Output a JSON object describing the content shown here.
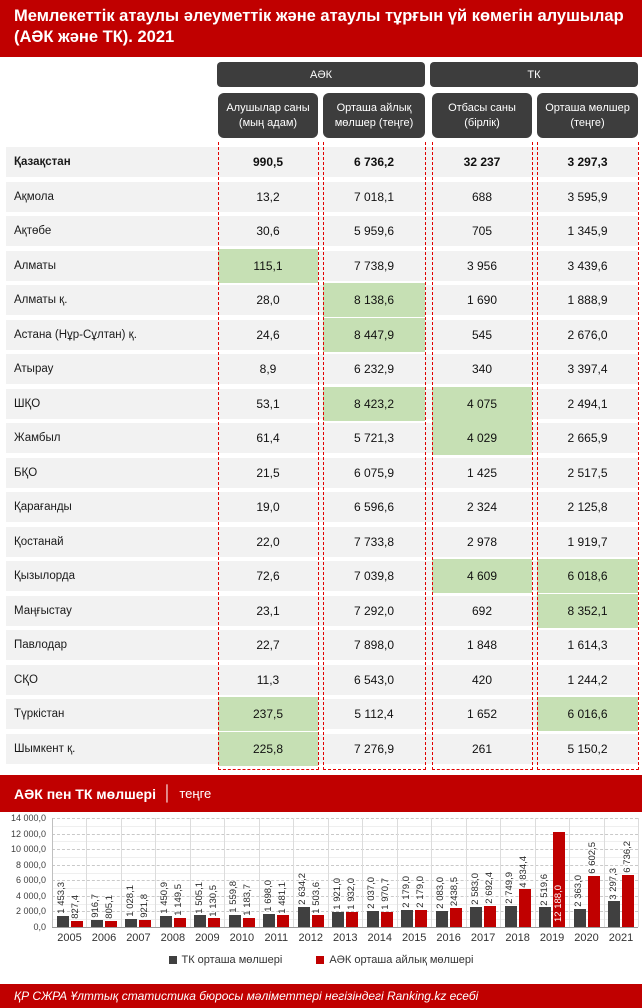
{
  "header": {
    "title": "Мемлекеттік атаулы әлеуметтік және атаулы тұрғын үй көмегін алушылар (АӘК және ТК). 2021"
  },
  "table": {
    "groups": [
      {
        "label": "АӘК"
      },
      {
        "label": "ТК"
      }
    ],
    "columns": [
      "Алушылар саны (мың адам)",
      "Орташа айлық мөлшер (теңге)",
      "Отбасы саны (бірлік)",
      "Орташа мөлшер (теңге)"
    ],
    "rows": [
      {
        "name": "Қазақстан",
        "bold": true,
        "values": [
          "990,5",
          "6 736,2",
          "32 237",
          "3 297,3"
        ],
        "highlights": []
      },
      {
        "name": "Ақмола",
        "values": [
          "13,2",
          "7 018,1",
          "688",
          "3 595,9"
        ],
        "highlights": []
      },
      {
        "name": "Ақтөбе",
        "values": [
          "30,6",
          "5 959,6",
          "705",
          "1 345,9"
        ],
        "highlights": []
      },
      {
        "name": "Алматы",
        "values": [
          "115,1",
          "7 738,9",
          "3 956",
          "3 439,6"
        ],
        "highlights": [
          0
        ]
      },
      {
        "name": "Алматы қ.",
        "values": [
          "28,0",
          "8 138,6",
          "1 690",
          "1 888,9"
        ],
        "highlights": [
          1
        ]
      },
      {
        "name": "Астана (Нұр-Сұлтан) қ.",
        "values": [
          "24,6",
          "8 447,9",
          "545",
          "2 676,0"
        ],
        "highlights": [
          1
        ]
      },
      {
        "name": "Атырау",
        "values": [
          "8,9",
          "6 232,9",
          "340",
          "3 397,4"
        ],
        "highlights": []
      },
      {
        "name": "ШҚО",
        "values": [
          "53,1",
          "8 423,2",
          "4 075",
          "2 494,1"
        ],
        "highlights": [
          1,
          2
        ]
      },
      {
        "name": "Жамбыл",
        "values": [
          "61,4",
          "5 721,3",
          "4 029",
          "2 665,9"
        ],
        "highlights": [
          2
        ]
      },
      {
        "name": "БҚО",
        "values": [
          "21,5",
          "6 075,9",
          "1 425",
          "2 517,5"
        ],
        "highlights": []
      },
      {
        "name": "Қарағанды",
        "values": [
          "19,0",
          "6 596,6",
          "2 324",
          "2 125,8"
        ],
        "highlights": []
      },
      {
        "name": "Қостанай",
        "values": [
          "22,0",
          "7 733,8",
          "2 978",
          "1 919,7"
        ],
        "highlights": []
      },
      {
        "name": "Қызылорда",
        "values": [
          "72,6",
          "7 039,8",
          "4 609",
          "6 018,6"
        ],
        "highlights": [
          2,
          3
        ]
      },
      {
        "name": "Маңғыстау",
        "values": [
          "23,1",
          "7 292,0",
          "692",
          "8 352,1"
        ],
        "highlights": [
          3
        ]
      },
      {
        "name": "Павлодар",
        "values": [
          "22,7",
          "7 898,0",
          "1 848",
          "1 614,3"
        ],
        "highlights": []
      },
      {
        "name": "СҚО",
        "values": [
          "11,3",
          "6 543,0",
          "420",
          "1 244,2"
        ],
        "highlights": []
      },
      {
        "name": "Түркістан",
        "values": [
          "237,5",
          "5 112,4",
          "1 652",
          "6 016,6"
        ],
        "highlights": [
          0,
          3
        ]
      },
      {
        "name": "Шымкент қ.",
        "values": [
          "225,8",
          "7 276,9",
          "261",
          "5 150,2"
        ],
        "highlights": [
          0
        ]
      }
    ]
  },
  "chart_section": {
    "title_bold": "АӘК пен ТК мөлшері",
    "divider": "│",
    "title_unit": "теңге"
  },
  "chart_data": {
    "type": "bar",
    "title": "АӘК пен ТК мөлшері, теңге",
    "categories": [
      2005,
      2006,
      2007,
      2008,
      2009,
      2010,
      2011,
      2012,
      2013,
      2014,
      2015,
      2016,
      2017,
      2018,
      2019,
      2020,
      2021
    ],
    "series": [
      {
        "name": "ТК орташа мөлшері",
        "color": "#404040",
        "values": [
          1453.3,
          916.7,
          1028.1,
          1450.9,
          1505.1,
          1559.8,
          1698.0,
          2634.2,
          1921.0,
          2037.0,
          2179.0,
          2083.0,
          2583.0,
          2749.9,
          2519.6,
          2363.0,
          3297.3
        ],
        "labels": [
          "1 453,3",
          "916,7",
          "1 028,1",
          "1 450,9",
          "1 505,1",
          "1 559,8",
          "1 698,0",
          "2 634,2",
          "1 921,0",
          "2 037,0",
          "2 179,0",
          "2 083,0",
          "2 583,0",
          "2 749,9",
          "2 519,6",
          "2 363,0",
          "3 297,3"
        ]
      },
      {
        "name": "АӘК орташа айлық мөлшері",
        "color": "#C00000",
        "values": [
          827.4,
          805.1,
          921.8,
          1149.5,
          1130.5,
          1183.7,
          1481.1,
          1503.6,
          1932.0,
          1970.7,
          2179.0,
          2438.5,
          2692.4,
          4834.4,
          12188.0,
          6602.5,
          6736.2
        ],
        "labels": [
          "827,4",
          "805,1",
          "921,8",
          "1 149,5",
          "1 130,5",
          "1 183,7",
          "1 481,1",
          "1 503,6",
          "1 932,0",
          "1 970,7",
          "2 179,0",
          "2438,5",
          "2 692,4",
          "4 834,4",
          "12 188,0",
          "6 602,5",
          "6 736,2"
        ]
      }
    ],
    "ylim": [
      0,
      14000
    ],
    "yticks": [
      "14 000,0",
      "12 000,0",
      "10 000,0",
      "8 000,0",
      "6 000,0",
      "4 000,0",
      "2 000,0",
      "0,0"
    ],
    "grid": true,
    "legend_position": "bottom",
    "inside_label": {
      "series": 1,
      "index": 14
    }
  },
  "legend": [
    {
      "label": "ТК орташа мөлшері",
      "color": "#404040"
    },
    {
      "label": "АӘК орташа айлық мөлшері",
      "color": "#C00000"
    }
  ],
  "footer": {
    "text": "ҚР СЖРА Ұлттық статистика бюросы мәліметтері негізіндегі Ranking.kz есебі"
  },
  "colors": {
    "accent_red": "#C00000",
    "header_box_gray": "#3D3D3D",
    "highlight_green": "#C6E0B4",
    "dashed_border_red": "#E30000",
    "row_band_gray": "#F2F2F2"
  }
}
